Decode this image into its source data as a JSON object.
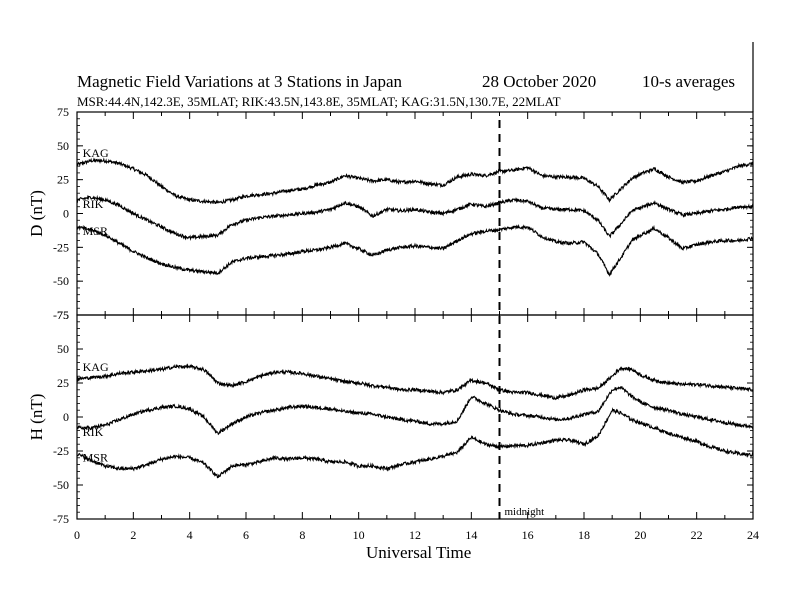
{
  "header": {
    "title": "Magnetic Field Variations at 3 Stations in Japan",
    "date": "28 October 2020",
    "averaging": "10-s averages",
    "stations": "MSR:44.4N,142.3E, 35MLAT;  RIK:43.5N,143.8E, 35MLAT;  KAG:31.5N,130.7E, 22MLAT"
  },
  "chart_data": [
    {
      "type": "line",
      "panel": "D",
      "ylabel": "D (nT)",
      "xlim": [
        0,
        24
      ],
      "ylim": [
        -75,
        75
      ],
      "yticks": [
        -75,
        -50,
        -25,
        0,
        25,
        50,
        75
      ],
      "series": [
        {
          "name": "KAG",
          "x": [
            0,
            0.5,
            1,
            1.5,
            2,
            2.5,
            3,
            3.5,
            4,
            4.5,
            5,
            5.5,
            6,
            6.5,
            7,
            7.5,
            8,
            8.5,
            9,
            9.5,
            10,
            10.5,
            11,
            11.5,
            12,
            12.5,
            13,
            13.5,
            14,
            14.5,
            15,
            15.5,
            16,
            16.5,
            17,
            17.5,
            18,
            18.5,
            18.9,
            19.3,
            19.7,
            20.1,
            20.5,
            21,
            21.5,
            22,
            22.5,
            23,
            23.5,
            24
          ],
          "y": [
            36,
            39,
            39,
            37,
            33,
            28,
            20,
            13,
            10,
            9,
            8,
            10,
            13,
            14,
            15,
            17,
            18,
            21,
            23,
            28,
            26,
            24,
            25,
            23,
            24,
            22,
            21,
            27,
            29,
            28,
            31,
            32,
            34,
            28,
            27,
            27,
            26,
            20,
            10,
            18,
            26,
            30,
            33,
            27,
            23,
            24,
            28,
            31,
            35,
            37
          ]
        },
        {
          "name": "RIK",
          "x": [
            0,
            0.5,
            1,
            1.5,
            2,
            2.5,
            3,
            3.5,
            4,
            4.5,
            5,
            5.5,
            6,
            6.5,
            7,
            7.5,
            8,
            8.5,
            9,
            9.5,
            10,
            10.5,
            11,
            11.5,
            12,
            12.5,
            13,
            13.5,
            14,
            14.5,
            15,
            15.5,
            16,
            16.5,
            17,
            17.5,
            18,
            18.5,
            18.9,
            19.3,
            19.7,
            20.1,
            20.5,
            21,
            21.5,
            22,
            22.5,
            23,
            23.5,
            24
          ],
          "y": [
            10,
            12,
            10,
            6,
            0,
            -5,
            -10,
            -15,
            -18,
            -17,
            -16,
            -8,
            -5,
            -3,
            -2,
            -1,
            0,
            1,
            3,
            8,
            5,
            -2,
            3,
            2,
            3,
            1,
            0,
            3,
            7,
            5,
            8,
            10,
            9,
            4,
            3,
            3,
            2,
            -5,
            -17,
            -8,
            2,
            5,
            8,
            3,
            -1,
            0,
            2,
            3,
            5,
            5
          ]
        },
        {
          "name": "MSR",
          "x": [
            0,
            0.5,
            1,
            1.5,
            2,
            2.5,
            3,
            3.5,
            4,
            4.5,
            5,
            5.5,
            6,
            6.5,
            7,
            7.5,
            8,
            8.5,
            9,
            9.5,
            10,
            10.5,
            11,
            11.5,
            12,
            12.5,
            13,
            13.5,
            14,
            14.5,
            15,
            15.5,
            16,
            16.5,
            17,
            17.5,
            18,
            18.5,
            18.9,
            19.3,
            19.7,
            20.1,
            20.5,
            21,
            21.5,
            22,
            22.5,
            23,
            23.5,
            24
          ],
          "y": [
            -10,
            -12,
            -16,
            -22,
            -28,
            -33,
            -37,
            -40,
            -42,
            -43,
            -44,
            -36,
            -33,
            -32,
            -31,
            -30,
            -28,
            -27,
            -25,
            -22,
            -26,
            -31,
            -27,
            -25,
            -24,
            -25,
            -26,
            -20,
            -15,
            -13,
            -12,
            -10,
            -10,
            -17,
            -21,
            -22,
            -21,
            -30,
            -45,
            -33,
            -20,
            -15,
            -11,
            -18,
            -26,
            -23,
            -21,
            -20,
            -20,
            -18
          ]
        }
      ]
    },
    {
      "type": "line",
      "panel": "H",
      "ylabel": "H (nT)",
      "xlabel": "Universal Time",
      "xlim": [
        0,
        24
      ],
      "ylim": [
        -75,
        75
      ],
      "yticks": [
        -75,
        -50,
        -25,
        0,
        25,
        50,
        75
      ],
      "xticks": [
        0,
        2,
        4,
        6,
        8,
        10,
        12,
        14,
        16,
        18,
        20,
        22,
        24
      ],
      "series": [
        {
          "name": "KAG",
          "x": [
            0,
            0.5,
            1,
            1.5,
            2,
            2.5,
            3,
            3.5,
            4,
            4.5,
            5,
            5.5,
            6,
            6.5,
            7,
            7.5,
            8,
            8.5,
            9,
            9.5,
            10,
            10.5,
            11,
            11.5,
            12,
            12.5,
            13,
            13.5,
            14,
            14.5,
            15,
            15.5,
            16,
            16.5,
            17,
            17.5,
            18,
            18.5,
            19,
            19.3,
            19.7,
            20.1,
            20.5,
            21,
            21.5,
            22,
            22.5,
            23,
            23.5,
            24
          ],
          "y": [
            28,
            29,
            30,
            32,
            33,
            34,
            35,
            37,
            37,
            35,
            25,
            23,
            26,
            30,
            33,
            33,
            32,
            30,
            28,
            26,
            25,
            23,
            22,
            20,
            20,
            19,
            18,
            20,
            27,
            25,
            20,
            18,
            18,
            16,
            14,
            16,
            20,
            21,
            30,
            36,
            35,
            30,
            27,
            25,
            24,
            24,
            23,
            22,
            21,
            20
          ]
        },
        {
          "name": "RIK",
          "x": [
            0,
            0.5,
            1,
            1.5,
            2,
            2.5,
            3,
            3.5,
            4,
            4.5,
            5,
            5.5,
            6,
            6.5,
            7,
            7.5,
            8,
            8.5,
            9,
            9.5,
            10,
            10.5,
            11,
            11.5,
            12,
            12.5,
            13,
            13.5,
            14,
            14.5,
            15,
            15.5,
            16,
            16.5,
            17,
            17.5,
            18,
            18.5,
            19,
            19.3,
            19.7,
            20.1,
            20.5,
            21,
            21.5,
            22,
            22.5,
            23,
            23.5,
            24
          ],
          "y": [
            -8,
            -8,
            -6,
            -2,
            2,
            5,
            7,
            8,
            6,
            0,
            -12,
            -5,
            0,
            3,
            5,
            7,
            8,
            7,
            6,
            4,
            3,
            2,
            0,
            -2,
            -3,
            -5,
            -5,
            -3,
            15,
            10,
            5,
            2,
            1,
            0,
            -2,
            -1,
            2,
            4,
            20,
            22,
            15,
            10,
            7,
            5,
            2,
            0,
            -2,
            -4,
            -6,
            -7
          ]
        },
        {
          "name": "MSR",
          "x": [
            0,
            0.5,
            1,
            1.5,
            2,
            2.5,
            3,
            3.5,
            4,
            4.5,
            5,
            5.5,
            6,
            6.5,
            7,
            7.5,
            8,
            8.5,
            9,
            9.5,
            10,
            10.5,
            11,
            11.5,
            12,
            12.5,
            13,
            13.5,
            14,
            14.5,
            15,
            15.5,
            16,
            16.5,
            17,
            17.5,
            18,
            18.5,
            19,
            19.3,
            19.7,
            20.1,
            20.5,
            21,
            21.5,
            22,
            22.5,
            23,
            23.5,
            24
          ],
          "y": [
            -27,
            -32,
            -36,
            -38,
            -38,
            -35,
            -31,
            -29,
            -30,
            -34,
            -44,
            -36,
            -35,
            -33,
            -30,
            -31,
            -30,
            -31,
            -33,
            -33,
            -36,
            -36,
            -38,
            -35,
            -33,
            -31,
            -29,
            -26,
            -15,
            -20,
            -22,
            -21,
            -21,
            -19,
            -17,
            -17,
            -20,
            -14,
            5,
            3,
            -2,
            -5,
            -8,
            -12,
            -15,
            -18,
            -22,
            -25,
            -27,
            -28
          ]
        }
      ],
      "annotations": [
        {
          "x": 15,
          "label": "midnight"
        }
      ]
    }
  ]
}
